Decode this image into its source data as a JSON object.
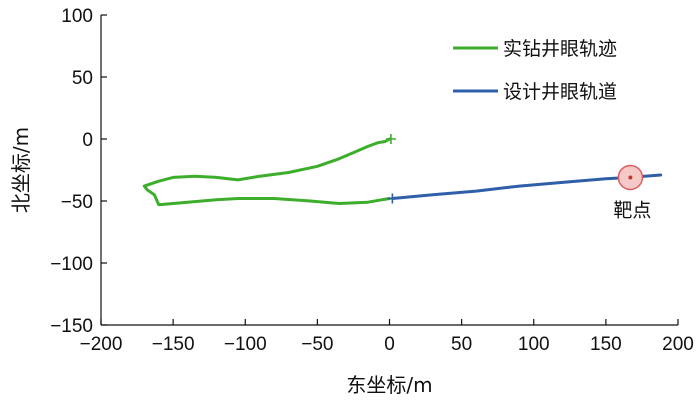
{
  "chart_data": {
    "type": "line",
    "xlabel": "东坐标/m",
    "ylabel": "北坐标/m",
    "xlim": [
      -200,
      200
    ],
    "ylim": [
      -150,
      100
    ],
    "xticks": [
      -200,
      -150,
      -100,
      -50,
      0,
      50,
      100,
      150,
      200
    ],
    "yticks": [
      -150,
      -100,
      -50,
      0,
      50,
      100
    ],
    "grid": false,
    "legend_position": "top-right",
    "series": [
      {
        "name": "实钻井眼轨迹",
        "color": "#3dae2b",
        "points": [
          [
            0,
            0
          ],
          [
            -3,
            -2
          ],
          [
            -8,
            -3
          ],
          [
            -15,
            -6
          ],
          [
            -25,
            -11
          ],
          [
            -35,
            -16
          ],
          [
            -50,
            -22
          ],
          [
            -70,
            -27
          ],
          [
            -90,
            -30
          ],
          [
            -105,
            -33
          ],
          [
            -120,
            -31
          ],
          [
            -135,
            -30
          ],
          [
            -150,
            -31
          ],
          [
            -160,
            -34
          ],
          [
            -170,
            -38
          ],
          [
            -168,
            -41
          ],
          [
            -163,
            -45
          ],
          [
            -160,
            -53
          ],
          [
            -140,
            -51
          ],
          [
            -120,
            -49
          ],
          [
            -105,
            -48
          ],
          [
            -80,
            -48
          ],
          [
            -55,
            -50
          ],
          [
            -35,
            -52
          ],
          [
            -15,
            -51
          ],
          [
            0,
            -48
          ]
        ]
      },
      {
        "name": "设计井眼轨道",
        "color": "#2f5fa8",
        "points": [
          [
            2,
            -48
          ],
          [
            30,
            -45
          ],
          [
            60,
            -42
          ],
          [
            90,
            -38
          ],
          [
            120,
            -35
          ],
          [
            150,
            -32
          ],
          [
            167,
            -31
          ],
          [
            188,
            -29
          ]
        ]
      }
    ],
    "markers": [
      {
        "type": "plus",
        "x": 1,
        "y": 0,
        "color": "#3dae2b"
      },
      {
        "type": "plus",
        "x": 2,
        "y": -48,
        "color": "#2f5fa8"
      }
    ],
    "annotations": [
      {
        "label": "靶点",
        "x": 167,
        "y": -31,
        "fill": "#f6c9c9",
        "stroke": "#e06060",
        "dot": "#c0392b"
      }
    ]
  }
}
